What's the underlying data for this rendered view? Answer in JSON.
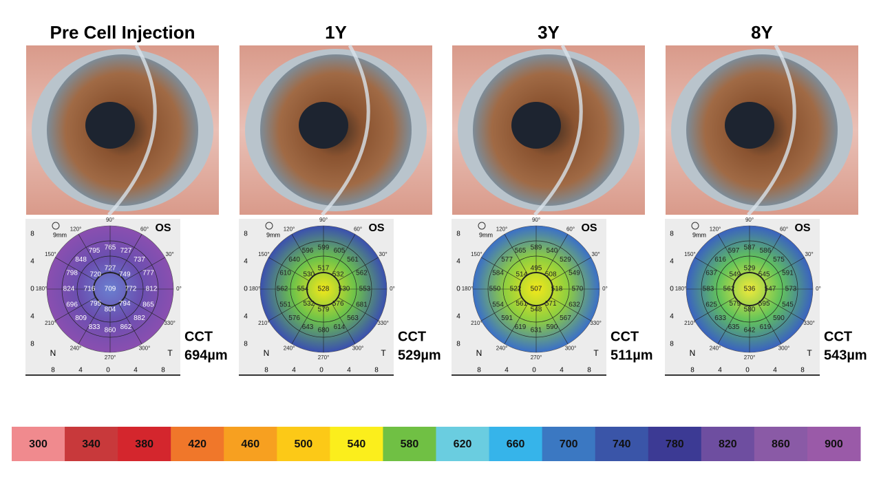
{
  "panels": [
    {
      "title": "Pre Cell Injection",
      "cct_label": "CCT",
      "cct_value": "694µm",
      "map_colors": [
        "#6a7fd0",
        "#6a4fb0",
        "#8a4fb0"
      ],
      "map_numbers": [
        "709",
        "772",
        "749",
        "727",
        "720",
        "716",
        "795",
        "804",
        "794",
        "812",
        "777",
        "737",
        "727",
        "765",
        "795",
        "848",
        "798",
        "824",
        "696",
        "809",
        "833",
        "860",
        "862",
        "882",
        "865"
      ]
    },
    {
      "title": "1Y",
      "cct_label": "CCT",
      "cct_value": "529µm",
      "map_colors": [
        "#f2e81a",
        "#6cc24a",
        "#3a4fb0"
      ],
      "map_numbers": [
        "528",
        "530",
        "532",
        "517",
        "530",
        "554",
        "532",
        "579",
        "576",
        "553",
        "562",
        "561",
        "605",
        "599",
        "596",
        "640",
        "610",
        "562",
        "551",
        "576",
        "643",
        "680",
        "614",
        "563",
        "681"
      ]
    },
    {
      "title": "3Y",
      "cct_label": "CCT",
      "cct_value": "511µm",
      "map_colors": [
        "#f2e81a",
        "#8fcf3f",
        "#3a6fc8"
      ],
      "map_numbers": [
        "507",
        "518",
        "508",
        "495",
        "514",
        "522",
        "561",
        "548",
        "571",
        "570",
        "549",
        "529",
        "540",
        "589",
        "565",
        "577",
        "584",
        "550",
        "554",
        "591",
        "619",
        "631",
        "590",
        "567",
        "632"
      ]
    },
    {
      "title": "8Y",
      "cct_label": "CCT",
      "cct_value": "543µm",
      "map_colors": [
        "#f0ea3a",
        "#62c35a",
        "#3a62c0"
      ],
      "map_numbers": [
        "536",
        "547",
        "545",
        "529",
        "549",
        "562",
        "579",
        "580",
        "595",
        "573",
        "591",
        "575",
        "586",
        "587",
        "597",
        "616",
        "637",
        "583",
        "625",
        "633",
        "635",
        "642",
        "619",
        "590",
        "545"
      ]
    }
  ],
  "map_labels": {
    "eye": "OS",
    "zoom": "9mm",
    "nasal": "N",
    "temporal": "T",
    "angles": [
      "90°",
      "60°",
      "30°",
      "0°",
      "330°",
      "300°",
      "270°",
      "240°",
      "210°",
      "180°",
      "150°",
      "120°"
    ],
    "ticks": [
      "8",
      "4",
      "0",
      "4",
      "8"
    ]
  },
  "scale": [
    {
      "label": "300",
      "color": "#f08a8e"
    },
    {
      "label": "340",
      "color": "#c8393b"
    },
    {
      "label": "380",
      "color": "#d4262d"
    },
    {
      "label": "420",
      "color": "#f0772a"
    },
    {
      "label": "460",
      "color": "#f7a020"
    },
    {
      "label": "500",
      "color": "#fcc917"
    },
    {
      "label": "540",
      "color": "#fbee1c"
    },
    {
      "label": "580",
      "color": "#70c044"
    },
    {
      "label": "620",
      "color": "#6acde0"
    },
    {
      "label": "660",
      "color": "#36b4ea"
    },
    {
      "label": "700",
      "color": "#3b78c2"
    },
    {
      "label": "740",
      "color": "#3a55a8"
    },
    {
      "label": "780",
      "color": "#3c3a94"
    },
    {
      "label": "820",
      "color": "#6e4ea0"
    },
    {
      "label": "860",
      "color": "#8a5aa6"
    },
    {
      "label": "900",
      "color": "#9a5aa8"
    }
  ]
}
